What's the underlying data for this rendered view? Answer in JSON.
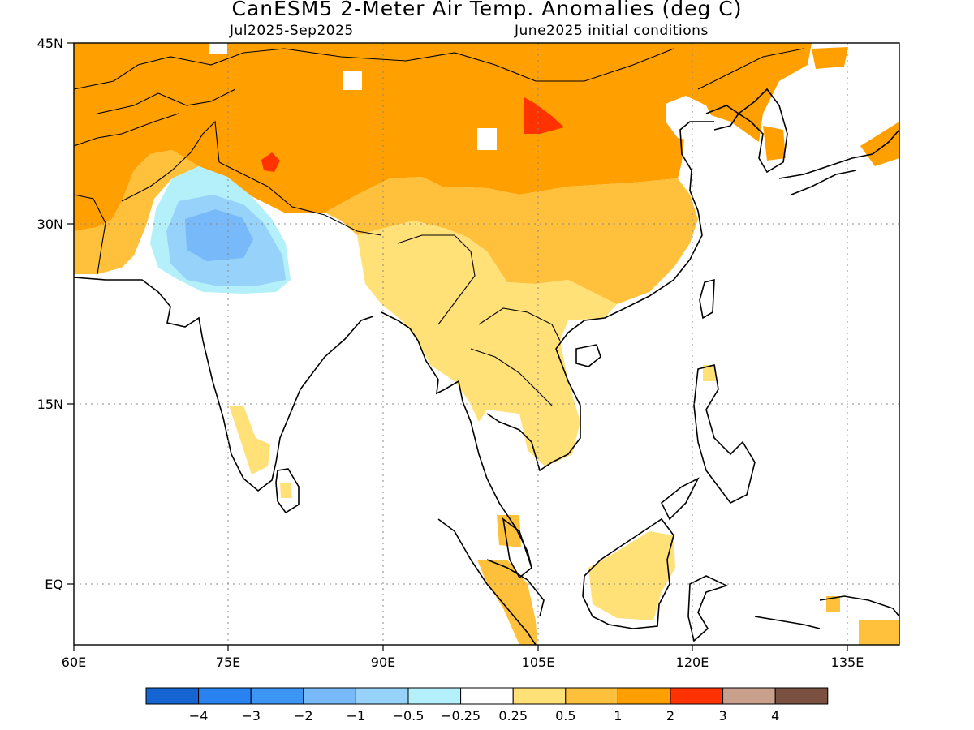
{
  "title": "CanESM5 2-Meter Air Temp. Anomalies (deg C)",
  "period": "Jul2025-Sep2025",
  "init": "June2025 initial conditions",
  "map": {
    "lon_range": [
      60,
      140
    ],
    "lat_range": [
      -5.5,
      45
    ],
    "lon_ticks": [
      {
        "value": 60,
        "label": "60E"
      },
      {
        "value": 75,
        "label": "75E"
      },
      {
        "value": 90,
        "label": "90E"
      },
      {
        "value": 105,
        "label": "105E"
      },
      {
        "value": 120,
        "label": "120E"
      },
      {
        "value": 135,
        "label": "135E"
      }
    ],
    "lat_ticks": [
      {
        "value": 45,
        "label": "45N"
      },
      {
        "value": 30,
        "label": "30N"
      },
      {
        "value": 15,
        "label": "15N"
      },
      {
        "value": 0,
        "label": "EQ"
      }
    ],
    "grid": "dotted"
  },
  "colorbar": {
    "colors": [
      "#1464d2",
      "#2882f0",
      "#3c96f5",
      "#78b9fa",
      "#96d2fa",
      "#b4f0fa",
      "#ffffff",
      "#ffe178",
      "#ffc03c",
      "#ffa000",
      "#ff3200",
      "#c8a08c",
      "#7a5040"
    ],
    "labels": [
      "-4",
      "-3",
      "-2",
      "-1",
      "-0.5",
      "-0.25",
      "0.25",
      "0.5",
      "1",
      "2",
      "3",
      "4"
    ]
  },
  "chart_data": {
    "type": "heatmap",
    "title": "CanESM5 2-Meter Air Temp. Anomalies (deg C)",
    "subtitle": "Jul2025-Sep2025 / June2025 initial conditions",
    "units": "deg C",
    "xlim": [
      60,
      140
    ],
    "ylim": [
      -5.5,
      45
    ],
    "regions": [
      {
        "area": "Central Asia / northwest",
        "lon": [
          60,
          80
        ],
        "lat": [
          33,
          45
        ],
        "anomaly": "1 to 2"
      },
      {
        "area": "Tibet / Mongolia / northern China",
        "lon": [
          80,
          120
        ],
        "lat": [
          31,
          45
        ],
        "anomaly": "1 to 2"
      },
      {
        "area": "Gobi hotspot",
        "lon": [
          102,
          105
        ],
        "lat": [
          38,
          40
        ],
        "anomaly": "2 to 3"
      },
      {
        "area": "Western Tibet hotspot",
        "lon": [
          78,
          80
        ],
        "lat": [
          34,
          36
        ],
        "anomaly": "2 to 3"
      },
      {
        "area": "Southern China",
        "lon": [
          98,
          118
        ],
        "lat": [
          24,
          31
        ],
        "anomaly": "0.5 to 1"
      },
      {
        "area": "Indochina / Myanmar",
        "lon": [
          88,
          110
        ],
        "lat": [
          12,
          27
        ],
        "anomaly": "0.25 to 0.5"
      },
      {
        "area": "Northwest India / Pakistan",
        "lon": [
          69,
          81
        ],
        "lat": [
          24,
          33
        ],
        "anomaly": "-1 to -0.25"
      },
      {
        "area": "Borneo",
        "lon": [
          110,
          118
        ],
        "lat": [
          -4,
          4
        ],
        "anomaly": "0.25 to 0.5"
      },
      {
        "area": "Sumatra",
        "lon": [
          98,
          104
        ],
        "lat": [
          -5,
          3
        ],
        "anomaly": "0.5 to 1"
      }
    ]
  }
}
